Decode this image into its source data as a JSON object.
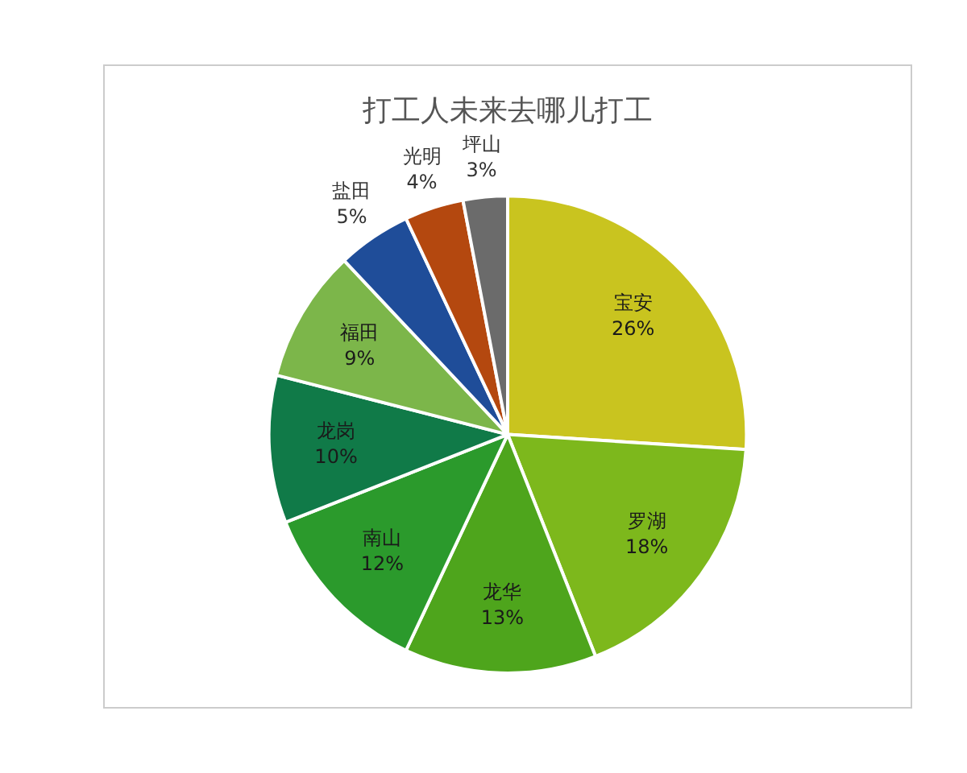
{
  "chart_data": {
    "type": "pie",
    "title": "打工人未来去哪儿打工",
    "categories": [
      "宝安",
      "罗湖",
      "龙华",
      "南山",
      "龙岗",
      "福田",
      "盐田",
      "光明",
      "坪山"
    ],
    "values": [
      26,
      18,
      13,
      12,
      10,
      9,
      5,
      4,
      3
    ],
    "colors": [
      "#c9c41f",
      "#7db81c",
      "#4ea51c",
      "#2b9a2c",
      "#107a48",
      "#7cb64a",
      "#1f4d99",
      "#b4480f",
      "#6b6b6b"
    ],
    "value_labels": [
      "26%",
      "18%",
      "13%",
      "12%",
      "10%",
      "9%",
      "5%",
      "4%",
      "3%"
    ],
    "legend": false
  }
}
